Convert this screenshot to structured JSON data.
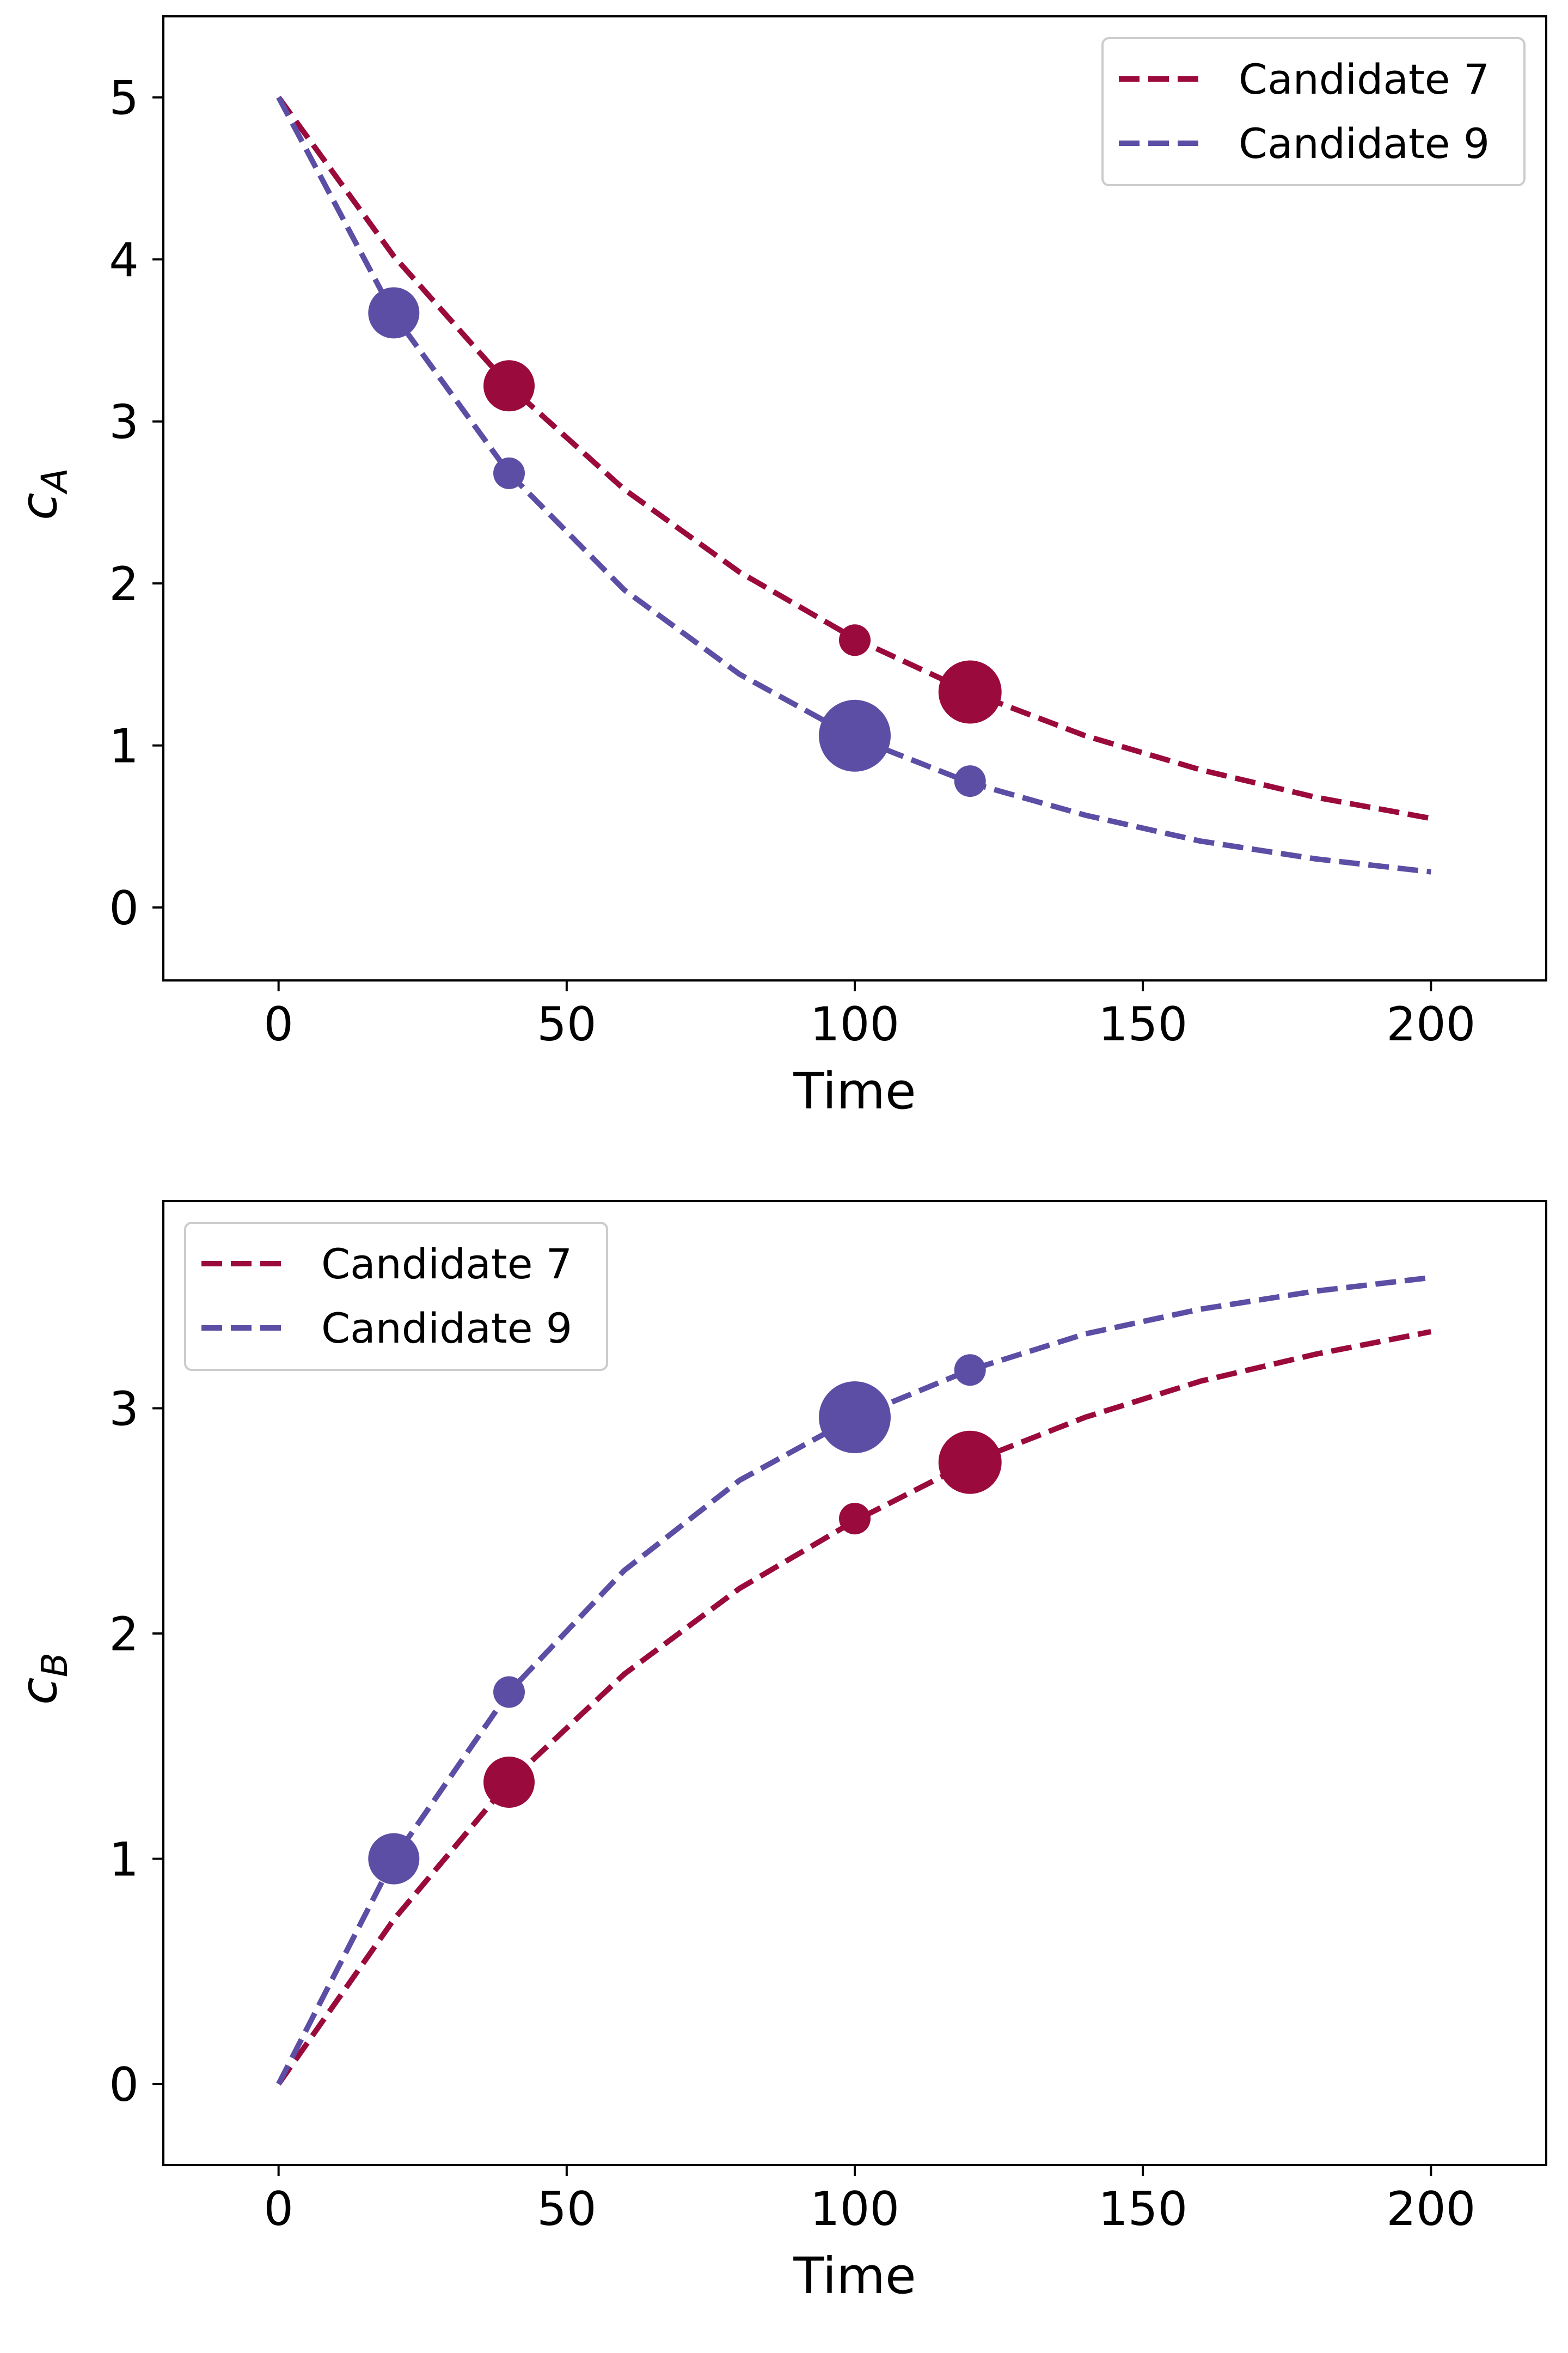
{
  "chart_data": [
    {
      "type": "line",
      "ylabel_main": "c",
      "ylabel_sub": "A",
      "xlabel": "Time",
      "xlim": [
        -20,
        220
      ],
      "ylim": [
        -0.45,
        5.5
      ],
      "xticks": [
        0,
        50,
        100,
        150,
        200
      ],
      "yticks": [
        0,
        1,
        2,
        3,
        4,
        5
      ],
      "legend_position": "top-right",
      "series": [
        {
          "name": "Candidate 7",
          "color": "#9b0a3c",
          "x": [
            0,
            20,
            40,
            60,
            80,
            100,
            120,
            140,
            160,
            180,
            200
          ],
          "y": [
            5.0,
            4.02,
            3.22,
            2.58,
            2.07,
            1.66,
            1.33,
            1.06,
            0.85,
            0.68,
            0.55
          ]
        },
        {
          "name": "Candidate 9",
          "color": "#5c4ea5",
          "x": [
            0,
            20,
            40,
            60,
            80,
            100,
            120,
            140,
            160,
            180,
            200
          ],
          "y": [
            5.0,
            3.66,
            2.68,
            1.96,
            1.44,
            1.05,
            0.77,
            0.57,
            0.41,
            0.3,
            0.22
          ]
        }
      ],
      "points": [
        {
          "series": 0,
          "x": 40,
          "y": 3.22,
          "size": "medium"
        },
        {
          "series": 0,
          "x": 100,
          "y": 1.65,
          "size": "small"
        },
        {
          "series": 0,
          "x": 120,
          "y": 1.33,
          "size": "large"
        },
        {
          "series": 1,
          "x": 20,
          "y": 3.67,
          "size": "medium"
        },
        {
          "series": 1,
          "x": 40,
          "y": 2.68,
          "size": "small"
        },
        {
          "series": 1,
          "x": 100,
          "y": 1.06,
          "size": "xlarge"
        },
        {
          "series": 1,
          "x": 120,
          "y": 0.78,
          "size": "small"
        }
      ]
    },
    {
      "type": "line",
      "ylabel_main": "c",
      "ylabel_sub": "B",
      "xlabel": "Time",
      "xlim": [
        -20,
        220
      ],
      "ylim": [
        -0.36,
        3.92
      ],
      "xticks": [
        0,
        50,
        100,
        150,
        200
      ],
      "yticks": [
        0,
        1,
        2,
        3
      ],
      "legend_position": "top-left",
      "series": [
        {
          "name": "Candidate 7",
          "color": "#9b0a3c",
          "x": [
            0,
            20,
            40,
            60,
            80,
            100,
            120,
            140,
            160,
            180,
            200
          ],
          "y": [
            0.0,
            0.73,
            1.34,
            1.82,
            2.2,
            2.5,
            2.76,
            2.96,
            3.12,
            3.24,
            3.34
          ]
        },
        {
          "name": "Candidate 9",
          "color": "#5c4ea5",
          "x": [
            0,
            20,
            40,
            60,
            80,
            100,
            120,
            140,
            160,
            180,
            200
          ],
          "y": [
            0.0,
            1.0,
            1.74,
            2.28,
            2.68,
            2.96,
            3.17,
            3.33,
            3.44,
            3.52,
            3.58
          ]
        }
      ],
      "points": [
        {
          "series": 0,
          "x": 40,
          "y": 1.34,
          "size": "medium"
        },
        {
          "series": 0,
          "x": 100,
          "y": 2.51,
          "size": "small"
        },
        {
          "series": 0,
          "x": 120,
          "y": 2.76,
          "size": "large"
        },
        {
          "series": 1,
          "x": 20,
          "y": 1.0,
          "size": "medium"
        },
        {
          "series": 1,
          "x": 40,
          "y": 1.74,
          "size": "small"
        },
        {
          "series": 1,
          "x": 100,
          "y": 2.96,
          "size": "xlarge"
        },
        {
          "series": 1,
          "x": 120,
          "y": 3.17,
          "size": "small"
        }
      ]
    }
  ]
}
